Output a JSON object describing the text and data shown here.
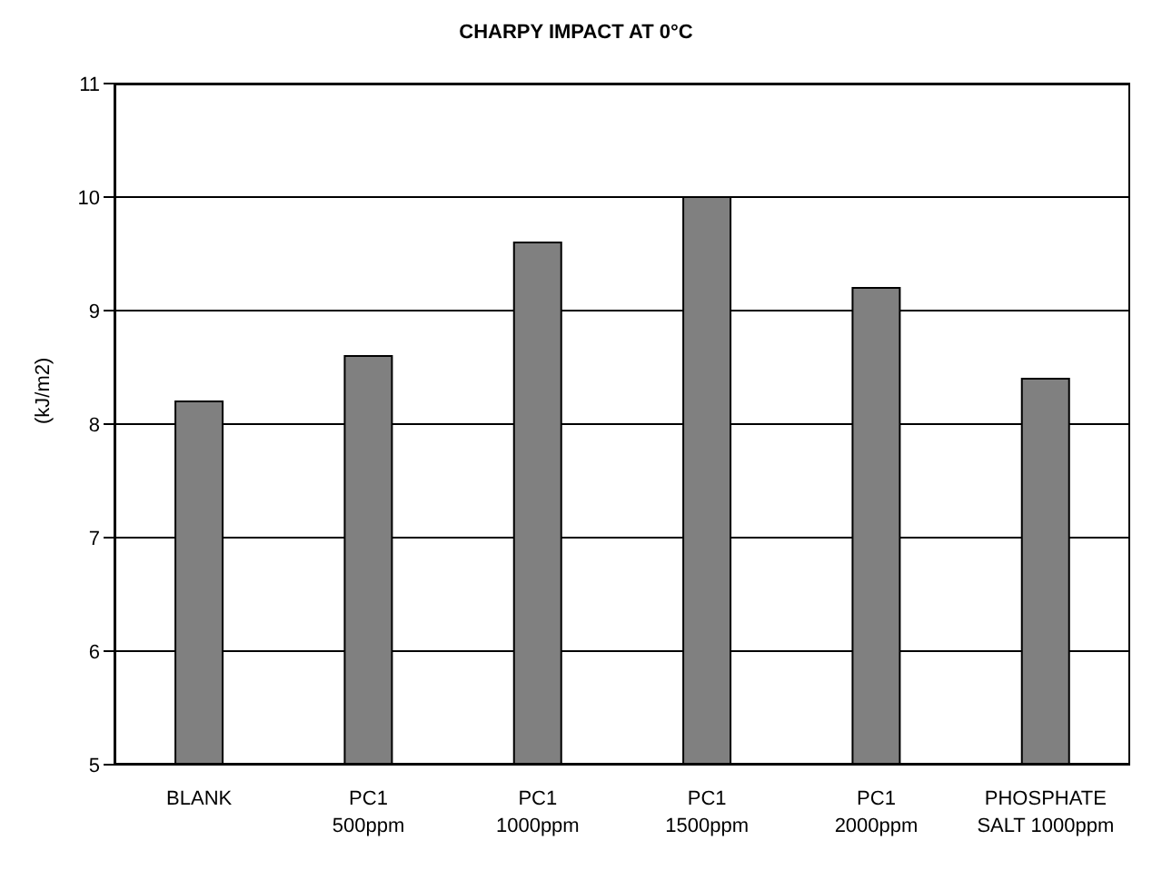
{
  "chart_data": {
    "type": "bar",
    "title": "CHARPY IMPACT AT 0°C",
    "ylabel": "(kJ/m2)",
    "categories": [
      "BLANK",
      "PC1\n500ppm",
      "PC1\n1000ppm",
      "PC1\n1500ppm",
      "PC1\n2000ppm",
      "PHOSPHATE\nSALT 1000ppm"
    ],
    "values": [
      8.2,
      8.6,
      9.6,
      10.0,
      9.2,
      8.4
    ],
    "color": "#808080",
    "ylim": [
      5,
      11
    ],
    "yticks": [
      5,
      6,
      7,
      8,
      9,
      10,
      11
    ],
    "grid": "y"
  }
}
